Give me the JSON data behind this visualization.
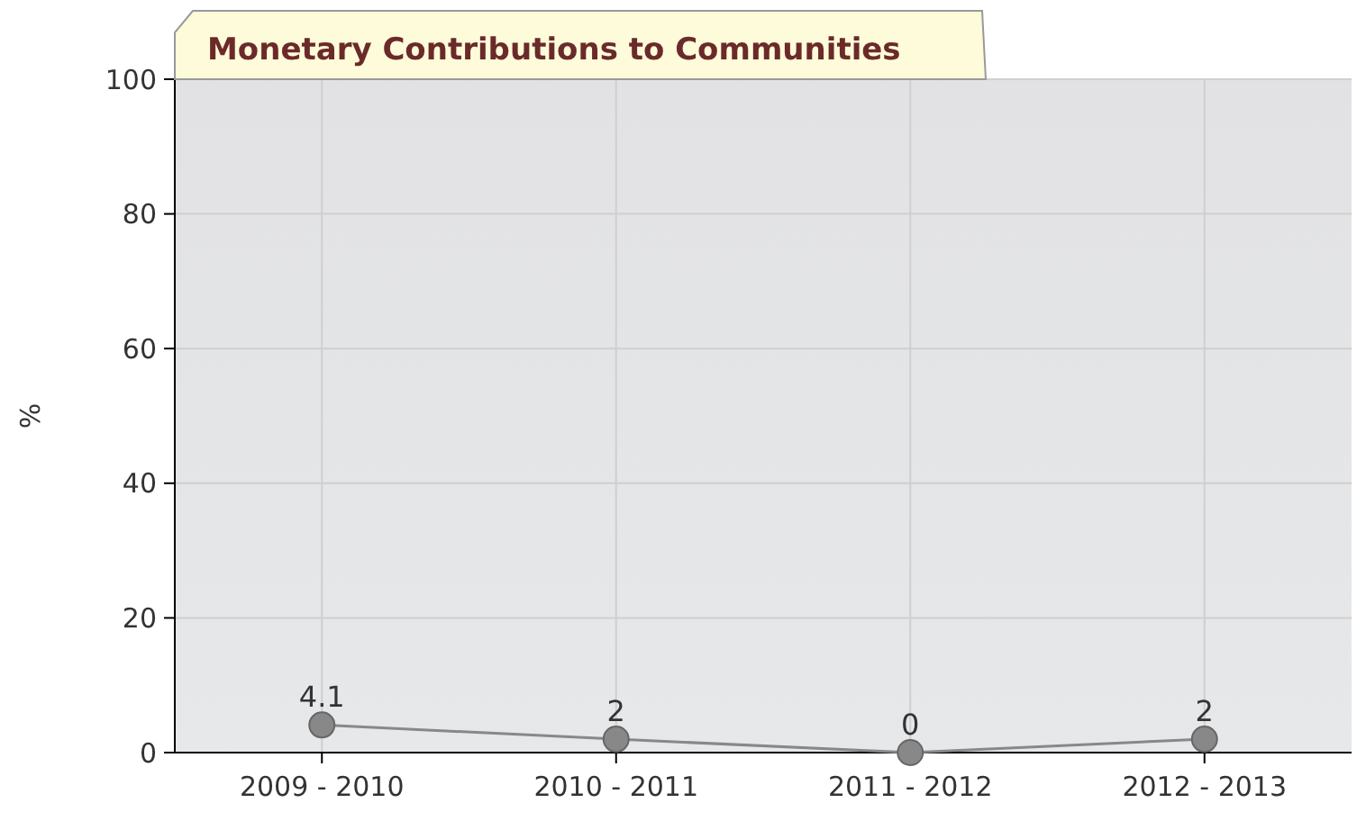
{
  "chart_data": {
    "type": "line",
    "title": "Monetary Contributions to Communities",
    "ylabel": "%",
    "categories": [
      "2009 - 2010",
      "2010 - 2011",
      "2011 - 2012",
      "2012 - 2013"
    ],
    "series": [
      {
        "color": "#888888",
        "values": [
          4.1,
          2,
          0,
          2
        ]
      }
    ],
    "ylim": [
      0,
      100
    ],
    "yticks": [
      0,
      20,
      40,
      60,
      80,
      100
    ],
    "grid": true,
    "marker": "circle",
    "data_labels": true
  }
}
